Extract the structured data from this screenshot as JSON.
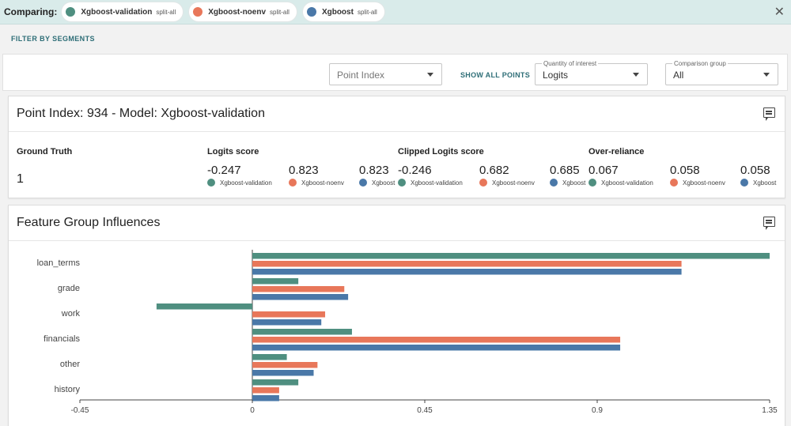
{
  "comparing": {
    "label": "Comparing:",
    "models": [
      {
        "name": "Xgboost-validation",
        "split": "split-all",
        "color": "#4f8f80"
      },
      {
        "name": "Xgboost-noenv",
        "split": "split-all",
        "color": "#e8775a"
      },
      {
        "name": "Xgboost",
        "split": "split-all",
        "color": "#4a78a8"
      }
    ],
    "close_icon": "close-icon"
  },
  "filter_label": "FILTER BY SEGMENTS",
  "controls": {
    "point_index_placeholder": "Point Index",
    "show_all_label": "SHOW ALL POINTS",
    "quantity_label": "Quantity of interest",
    "quantity_value": "Logits",
    "comparison_label": "Comparison group",
    "comparison_value": "All"
  },
  "point_card": {
    "title": "Point Index: 934 - Model: Xgboost-validation",
    "ground_truth_label": "Ground Truth",
    "ground_truth_value": "1",
    "metrics": [
      {
        "title": "Logits score",
        "values": [
          "-0.247",
          "0.823",
          "0.823"
        ]
      },
      {
        "title": "Clipped Logits score",
        "values": [
          "-0.246",
          "0.682",
          "0.685"
        ]
      },
      {
        "title": "Over-reliance",
        "values": [
          "0.067",
          "0.058",
          "0.058"
        ]
      }
    ],
    "legend_names": [
      "Xgboost-validation",
      "Xgboost-noenv",
      "Xgboost"
    ]
  },
  "influence_card": {
    "title": "Feature Group Influences"
  },
  "chart_data": {
    "type": "bar",
    "orientation": "horizontal",
    "categories": [
      "loan_terms",
      "grade",
      "work",
      "financials",
      "other",
      "history"
    ],
    "series": [
      {
        "name": "Xgboost-validation",
        "color": "#4f8f80",
        "values": [
          1.35,
          0.12,
          -0.25,
          0.26,
          0.09,
          0.12
        ]
      },
      {
        "name": "Xgboost-noenv",
        "color": "#e8775a",
        "values": [
          1.12,
          0.24,
          0.19,
          0.96,
          0.17,
          0.07
        ]
      },
      {
        "name": "Xgboost",
        "color": "#4a78a8",
        "values": [
          1.12,
          0.25,
          0.18,
          0.96,
          0.16,
          0.07
        ]
      }
    ],
    "xlim": [
      -0.45,
      1.35
    ],
    "xticks": [
      "-0.45",
      "0",
      "0.45",
      "0.9",
      "1.35"
    ],
    "tick_values": [
      -0.45,
      0,
      0.45,
      0.9,
      1.35
    ],
    "grid": false
  }
}
